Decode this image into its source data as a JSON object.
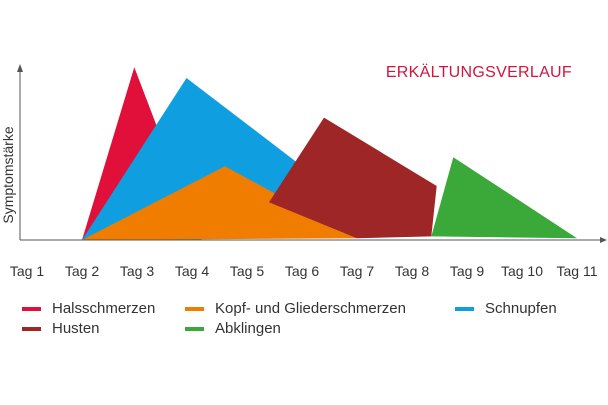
{
  "chart_data": {
    "type": "area",
    "title": "ERKÄLTUNGSVERLAUF",
    "xlabel": "",
    "ylabel": "Symptomstärke",
    "categories": [
      "Tag 1",
      "Tag 2",
      "Tag 3",
      "Tag 4",
      "Tag 5",
      "Tag 6",
      "Tag 7",
      "Tag 8",
      "Tag 9",
      "Tag 10",
      "Tag 11"
    ],
    "ylim": [
      0,
      10
    ],
    "grid": false,
    "legend_position": "bottom",
    "series": [
      {
        "name": "Halsschmerzen",
        "color": "#e0103a",
        "points": [
          [
            2,
            0
          ],
          [
            2.95,
            9.6
          ],
          [
            3.4,
            6.0
          ],
          [
            2.15,
            0
          ]
        ]
      },
      {
        "name": "Schnupfen",
        "color": "#0f9fe0",
        "points": [
          [
            2,
            0
          ],
          [
            3.9,
            9.0
          ],
          [
            6.0,
            4.1
          ],
          [
            5.4,
            2.1
          ],
          [
            4.15,
            0
          ],
          [
            2.15,
            0
          ]
        ]
      },
      {
        "name": "Kopf- und Gliederschmerzen",
        "color": "#f07c00",
        "points": [
          [
            2,
            0
          ],
          [
            4.6,
            4.1
          ],
          [
            7.0,
            0.1
          ],
          [
            2.15,
            0
          ]
        ]
      },
      {
        "name": "Husten",
        "color": "#9e2626",
        "points": [
          [
            5.4,
            2.1
          ],
          [
            6.4,
            6.8
          ],
          [
            8.45,
            3.0
          ],
          [
            8.35,
            0.2
          ],
          [
            7.0,
            0.1
          ]
        ]
      },
      {
        "name": "Abklingen",
        "color": "#3aa93a",
        "points": [
          [
            8.35,
            0.2
          ],
          [
            8.75,
            4.6
          ],
          [
            11.0,
            0.1
          ]
        ]
      }
    ]
  },
  "legend": {
    "items": [
      {
        "label": "Halsschmerzen",
        "color": "#e0103a"
      },
      {
        "label": "Kopf- und Gliederschmerzen",
        "color": "#f07c00"
      },
      {
        "label": "Schnupfen",
        "color": "#0f9fe0"
      },
      {
        "label": "Husten",
        "color": "#9e2626"
      },
      {
        "label": "Abklingen",
        "color": "#3aa93a"
      }
    ]
  }
}
